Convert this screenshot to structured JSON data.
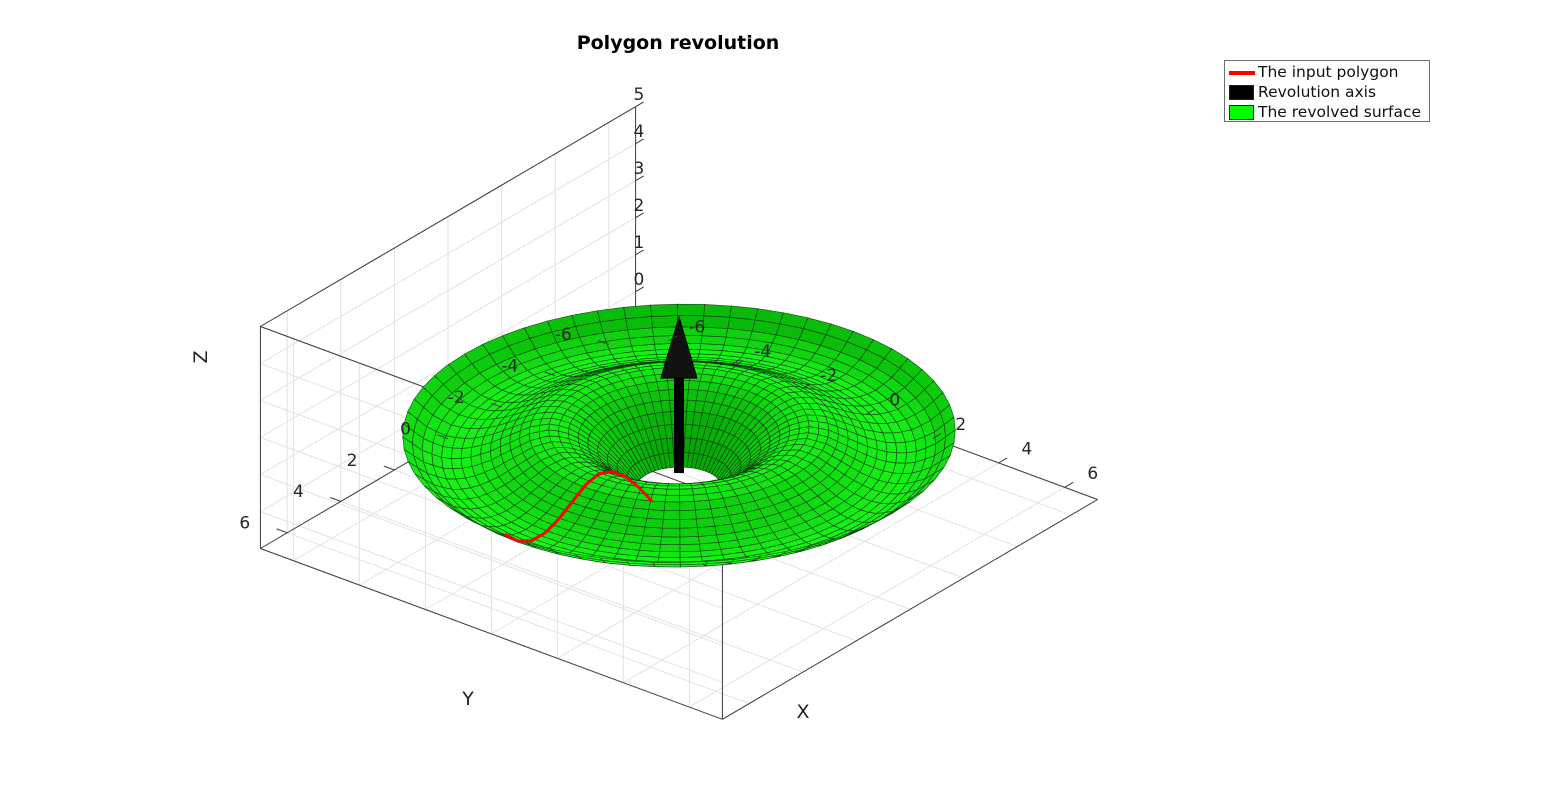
{
  "title": "Polygon revolution",
  "legend": {
    "items": [
      {
        "label": "The input polygon",
        "type": "line",
        "color": "#ff0000"
      },
      {
        "label": "Revolution axis",
        "type": "patch",
        "color": "#000000"
      },
      {
        "label": "The revolved surface",
        "type": "patch",
        "color": "#00ff00"
      }
    ]
  },
  "axes": {
    "xlabel": "X",
    "ylabel": "Y",
    "zlabel": "Z",
    "x_ticks": [
      "-6",
      "-4",
      "-2",
      "0",
      "2",
      "4",
      "6"
    ],
    "y_ticks": [
      "-6",
      "-4",
      "-2",
      "0",
      "2",
      "4",
      "6"
    ],
    "z_ticks": [
      "0",
      "1",
      "2",
      "3",
      "4",
      "5"
    ]
  },
  "chart_data": {
    "type": "surface",
    "title": "Polygon revolution",
    "xlabel": "X",
    "ylabel": "Y",
    "zlabel": "Z",
    "xlim": [
      -7,
      7
    ],
    "ylim": [
      -7,
      7
    ],
    "zlim": [
      -1,
      5
    ],
    "grid": true,
    "legend_position": "top-right",
    "surface_color": "#00ff00",
    "polygon_color": "#ff0000",
    "axis_color": "#000000",
    "polygon_profile": {
      "r": [
        1,
        1.5,
        2,
        2.5,
        3,
        3.5,
        4,
        4.5,
        5,
        5.5,
        6,
        6.5
      ],
      "z": [
        0.0,
        0.6,
        1.1,
        1.45,
        1.6,
        1.5,
        1.25,
        1.0,
        0.85,
        0.85,
        1.05,
        1.45
      ]
    },
    "revolution_axis": {
      "origin": [
        0,
        0,
        0
      ],
      "direction": [
        0,
        0,
        1
      ],
      "length": 4.6
    }
  }
}
